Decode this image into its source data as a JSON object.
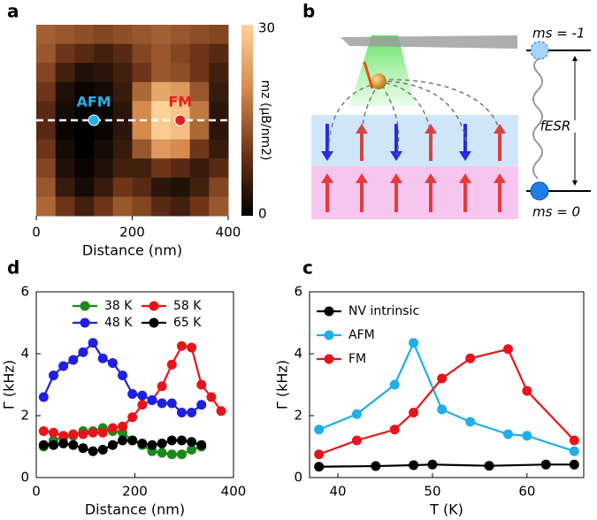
{
  "panel_labels": [
    "a",
    "b",
    "c",
    "d"
  ],
  "diagram": {
    "upper_level": "ms = -1",
    "transition": "fESR",
    "lower_level": "ms = 0"
  },
  "chart_data": [
    {
      "type": "heatmap",
      "x_label": "Distance (nm)",
      "xlim": [
        0,
        400
      ],
      "ylim": [
        0,
        400
      ],
      "xticks": [
        0,
        200,
        400
      ],
      "z": [
        [
          15,
          14,
          13,
          12,
          13,
          14,
          15,
          14,
          13,
          12
        ],
        [
          14,
          10,
          8,
          6,
          8,
          12,
          14,
          12,
          10,
          8
        ],
        [
          12,
          6,
          3,
          4,
          6,
          10,
          14,
          13,
          10,
          6
        ],
        [
          10,
          3,
          1,
          2,
          5,
          16,
          24,
          22,
          14,
          5
        ],
        [
          8,
          2,
          0,
          1,
          4,
          20,
          30,
          28,
          18,
          4
        ],
        [
          8,
          1,
          0,
          1,
          4,
          20,
          29,
          27,
          16,
          4
        ],
        [
          10,
          2,
          0,
          2,
          5,
          14,
          22,
          20,
          10,
          5
        ],
        [
          12,
          3,
          1,
          3,
          6,
          6,
          10,
          8,
          5,
          8
        ],
        [
          14,
          5,
          2,
          5,
          10,
          8,
          4,
          3,
          6,
          12
        ],
        [
          16,
          10,
          6,
          10,
          14,
          12,
          8,
          6,
          10,
          14
        ]
      ],
      "clim": [
        0,
        30
      ],
      "cticks": [
        0,
        30
      ],
      "colorbar_label": "mz (μB/nm2)",
      "colormap": [
        "#000000",
        "#6e3518",
        "#d68a4c",
        "#ffd39a"
      ],
      "cut_line_y": 200,
      "points": [
        {
          "label": "AFM",
          "x": 120,
          "y": 200,
          "color": "#29aee6"
        },
        {
          "label": "FM",
          "x": 300,
          "y": 200,
          "color": "#e0201b"
        }
      ]
    },
    {
      "type": "line",
      "x_label": "Distance (nm)",
      "y_label": "Γ (kHz)",
      "xlim": [
        0,
        400
      ],
      "xticks": [
        0,
        200,
        400
      ],
      "ylim": [
        0,
        6
      ],
      "yticks": [
        0,
        2,
        4,
        6
      ],
      "legend_columns": 2,
      "legend": "upper right",
      "x": [
        15,
        35,
        55,
        75,
        95,
        115,
        135,
        155,
        175,
        195,
        215,
        235,
        255,
        275,
        295,
        315,
        335,
        355,
        375
      ],
      "series": [
        {
          "name": "38 K",
          "color": "#1a8a1a",
          "values": [
            1.0,
            1.2,
            1.3,
            1.35,
            1.5,
            1.5,
            1.6,
            1.5,
            1.45,
            1.2,
            1.05,
            0.85,
            0.8,
            0.75,
            0.75,
            0.9,
            1.0,
            null,
            null
          ]
        },
        {
          "name": "58 K",
          "color": "#e8141b",
          "values": [
            1.5,
            1.45,
            1.35,
            1.4,
            1.4,
            1.45,
            1.45,
            1.6,
            1.65,
            1.95,
            2.35,
            2.5,
            2.95,
            3.65,
            4.25,
            4.2,
            3.0,
            2.6,
            2.15
          ]
        },
        {
          "name": "48 K",
          "color": "#1f1fe0",
          "values": [
            2.6,
            3.3,
            3.6,
            3.8,
            4.05,
            4.35,
            3.85,
            3.7,
            3.3,
            2.7,
            2.65,
            2.5,
            2.4,
            2.4,
            2.1,
            2.1,
            2.35,
            null,
            null
          ]
        },
        {
          "name": "65 K",
          "color": "#000000",
          "values": [
            1.05,
            1.05,
            1.1,
            1.05,
            0.95,
            0.85,
            0.9,
            1.05,
            1.2,
            1.2,
            1.1,
            1.05,
            1.1,
            1.2,
            1.2,
            1.15,
            1.05,
            null,
            null
          ]
        }
      ]
    },
    {
      "type": "line",
      "x_label": "T (K)",
      "y_label": "Γ (kHz)",
      "xlim": [
        37,
        66
      ],
      "xticks": [
        40,
        50,
        60
      ],
      "ylim": [
        0,
        6
      ],
      "yticks": [
        0,
        2,
        4,
        6
      ],
      "legend_columns": 1,
      "legend": "upper left",
      "series": [
        {
          "name": "NV intrinsic",
          "color": "#000000",
          "x": [
            38,
            44,
            48,
            50,
            56,
            62,
            65
          ],
          "values": [
            0.35,
            0.37,
            0.4,
            0.42,
            0.38,
            0.42,
            0.42
          ]
        },
        {
          "name": "AFM",
          "color": "#1eaeea",
          "x": [
            38,
            42,
            46,
            48,
            51,
            54,
            58,
            60,
            65
          ],
          "values": [
            1.55,
            2.05,
            3.0,
            4.35,
            2.2,
            1.8,
            1.4,
            1.35,
            0.85
          ]
        },
        {
          "name": "FM",
          "color": "#e8141b",
          "x": [
            38,
            42,
            46,
            48,
            51,
            54,
            58,
            60,
            65
          ],
          "values": [
            0.75,
            1.2,
            1.55,
            2.1,
            3.2,
            3.85,
            4.15,
            2.8,
            1.2
          ]
        }
      ]
    }
  ]
}
